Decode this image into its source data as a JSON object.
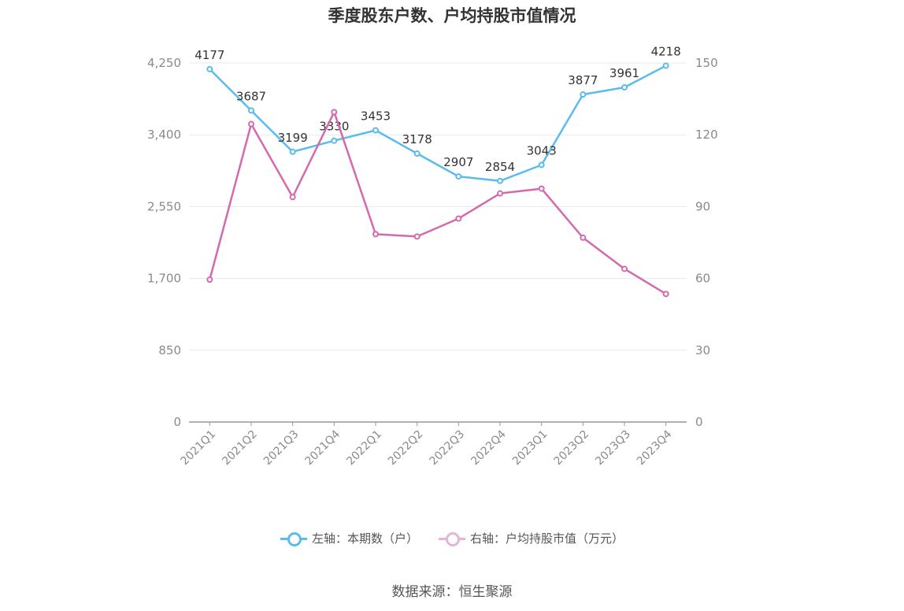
{
  "title": "季度股东户数、户均持股市值情况",
  "source": "数据来源：恒生聚源",
  "legend": {
    "left_label": "左轴：本期数（户）",
    "right_label": "右轴：户均持股市值（万元）"
  },
  "colors": {
    "left": "#5bbcec",
    "right": "#d36aad",
    "right_legend": "#e5b5d6",
    "grid": "#e3e9f2",
    "axis": "#999999"
  },
  "chart_data": {
    "type": "line",
    "categories": [
      "2021Q1",
      "2021Q2",
      "2021Q3",
      "2021Q4",
      "2022Q1",
      "2022Q2",
      "2022Q3",
      "2022Q4",
      "2023Q1",
      "2023Q2",
      "2023Q3",
      "2023Q4"
    ],
    "series": [
      {
        "name": "左轴：本期数（户）",
        "axis": "left",
        "values": [
          4177,
          3687,
          3199,
          3330,
          3453,
          3178,
          2907,
          2854,
          3043,
          3877,
          3961,
          4218
        ],
        "labels": [
          "4177",
          "3687",
          "3199",
          "3330",
          "3453",
          "3178",
          "2907",
          "2854",
          "3043",
          "3877",
          "3961",
          "4218"
        ]
      },
      {
        "name": "右轴：户均持股市值（万元）",
        "axis": "right",
        "values": [
          59.5,
          124.5,
          94,
          129.5,
          78.5,
          77.5,
          85,
          95.5,
          97.5,
          77,
          64,
          53.5
        ]
      }
    ],
    "left_axis": {
      "ylim": [
        0,
        4250
      ],
      "ticks": [
        "0",
        "850",
        "1,700",
        "2,550",
        "3,400",
        "4,250"
      ]
    },
    "right_axis": {
      "ylim": [
        0,
        150
      ],
      "ticks": [
        "0",
        "30",
        "60",
        "90",
        "120",
        "150"
      ]
    },
    "grid": true,
    "legend_position": "bottom"
  }
}
